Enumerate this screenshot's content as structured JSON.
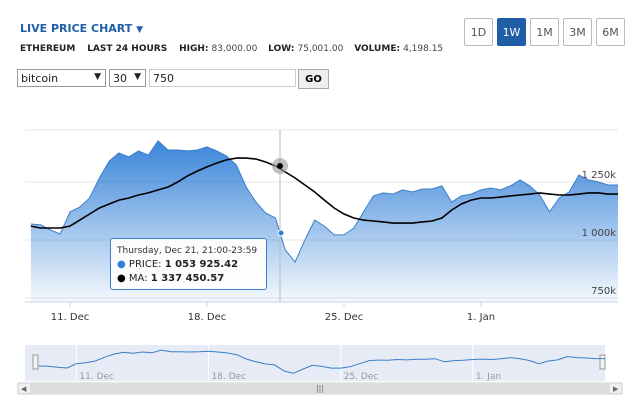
{
  "header": {
    "title": "LIVE PRICE CHART",
    "asset": "ETHEREUM",
    "period": "LAST 24 HOURS",
    "high": {
      "label": "HIGH:",
      "value": "83,000.00"
    },
    "low": {
      "label": "LOW:",
      "value": "75,001.00"
    },
    "volume": {
      "label": "VOLUME:",
      "value": "4,198.15"
    }
  },
  "ranges": [
    "1D",
    "1W",
    "1M",
    "3M",
    "6M"
  ],
  "active_range": "1W",
  "controls": {
    "coin": "bitcoin",
    "ma": "30",
    "limit": "750",
    "button": "GO"
  },
  "chart_data": {
    "type": "area",
    "x": [
      9,
      9.5,
      10,
      10.5,
      11,
      11.5,
      12,
      12.5,
      13,
      13.5,
      14,
      14.5,
      15,
      15.5,
      16,
      16.5,
      17,
      17.5,
      18,
      18.5,
      19,
      19.5,
      20,
      20.5,
      21,
      21.5,
      22,
      22.5,
      23,
      23.5,
      24,
      24.5,
      25,
      25.5,
      26,
      26.5,
      27,
      27.5,
      28,
      28.5,
      29,
      29.5,
      30,
      30.5,
      31,
      31.5,
      32,
      32.5,
      33,
      33.5,
      34,
      34.5,
      35,
      35.5,
      36,
      36.5,
      37,
      37.5,
      38,
      38.5,
      39
    ],
    "series": [
      {
        "name": "PRICE",
        "color": "#3a7fc8",
        "values": [
          1069000,
          1065000,
          1043000,
          1026000,
          1121000,
          1142000,
          1181000,
          1267000,
          1340000,
          1375000,
          1358000,
          1384000,
          1366000,
          1427000,
          1388000,
          1388000,
          1384000,
          1388000,
          1401000,
          1384000,
          1362000,
          1323000,
          1228000,
          1164000,
          1116000,
          1095000,
          957000,
          905000,
          1000000,
          1086000,
          1060000,
          1022000,
          1022000,
          1052000,
          1121000,
          1190000,
          1203000,
          1198000,
          1216000,
          1207000,
          1220000,
          1220000,
          1233000,
          1164000,
          1190000,
          1198000,
          1216000,
          1224000,
          1216000,
          1233000,
          1259000,
          1233000,
          1194000,
          1121000,
          1181000,
          1207000,
          1280000,
          1259000,
          1250000,
          1237000,
          1237000
        ]
      },
      {
        "name": "MA",
        "color": "#000000",
        "values": [
          1060000,
          1052000,
          1052000,
          1052000,
          1060000,
          1086000,
          1112000,
          1138000,
          1155000,
          1172000,
          1181000,
          1194000,
          1203000,
          1216000,
          1228000,
          1250000,
          1276000,
          1297000,
          1315000,
          1332000,
          1345000,
          1353000,
          1353000,
          1349000,
          1336000,
          1319000,
          1293000,
          1267000,
          1237000,
          1207000,
          1172000,
          1138000,
          1112000,
          1095000,
          1086000,
          1082000,
          1078000,
          1073000,
          1073000,
          1073000,
          1078000,
          1082000,
          1095000,
          1129000,
          1155000,
          1172000,
          1181000,
          1181000,
          1185000,
          1190000,
          1194000,
          1198000,
          1203000,
          1198000,
          1194000,
          1194000,
          1198000,
          1203000,
          1203000,
          1198000,
          1198000
        ]
      }
    ],
    "xlim": [
      8.7,
      39
    ],
    "xticks": [
      {
        "value": 11,
        "label": "11. Dec"
      },
      {
        "value": 18,
        "label": "18. Dec"
      },
      {
        "value": 25,
        "label": "25. Dec"
      },
      {
        "value": 32,
        "label": "1. Jan"
      }
    ],
    "ylim": [
      733000,
      1474000
    ],
    "yticks": [
      {
        "value": 750000,
        "label": "750k"
      },
      {
        "value": 1000000,
        "label": "1 000k"
      },
      {
        "value": 1250000,
        "label": "1 250k"
      }
    ],
    "grid": true,
    "tooltip": {
      "title": "Thursday, Dec 21, 21:00-23:59",
      "rows": [
        {
          "label": "PRICE:",
          "value": "1 053 925.42"
        },
        {
          "label": "MA:",
          "value": "1 337 450.57"
        }
      ]
    }
  }
}
